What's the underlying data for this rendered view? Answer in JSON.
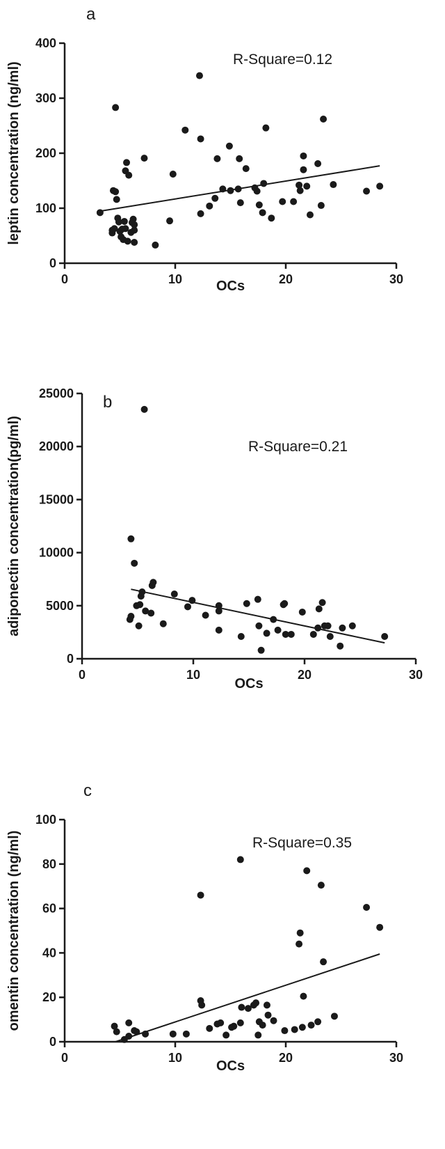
{
  "chart_data": [
    {
      "panel": "a",
      "type": "scatter",
      "annotation": "R-Square=0.12",
      "xlabel": "OCs",
      "ylabel": "leptin concentration (ng/ml)",
      "xlim": [
        0,
        30
      ],
      "ylim": [
        0,
        400
      ],
      "xticks": [
        0,
        10,
        20,
        30
      ],
      "yticks": [
        0,
        100,
        200,
        300,
        400
      ],
      "fit": [
        [
          3,
          94
        ],
        [
          28.5,
          177
        ]
      ],
      "points": [
        [
          3.2,
          92
        ],
        [
          4.3,
          60
        ],
        [
          4.3,
          55
        ],
        [
          4.4,
          132
        ],
        [
          4.5,
          63
        ],
        [
          4.6,
          130
        ],
        [
          4.6,
          283
        ],
        [
          4.7,
          116
        ],
        [
          4.8,
          82
        ],
        [
          4.9,
          75
        ],
        [
          5.0,
          58
        ],
        [
          5.1,
          48
        ],
        [
          5.2,
          62
        ],
        [
          5.3,
          43
        ],
        [
          5.4,
          76
        ],
        [
          5.5,
          63
        ],
        [
          5.5,
          168
        ],
        [
          5.6,
          183
        ],
        [
          5.7,
          40
        ],
        [
          5.8,
          160
        ],
        [
          6.0,
          56
        ],
        [
          6.1,
          74
        ],
        [
          6.2,
          80
        ],
        [
          6.3,
          38
        ],
        [
          6.3,
          70
        ],
        [
          6.3,
          60
        ],
        [
          7.2,
          191
        ],
        [
          8.2,
          33
        ],
        [
          9.5,
          77
        ],
        [
          9.8,
          162
        ],
        [
          10.9,
          242
        ],
        [
          12.2,
          341
        ],
        [
          12.3,
          226
        ],
        [
          12.3,
          90
        ],
        [
          13.1,
          104
        ],
        [
          13.6,
          118
        ],
        [
          13.8,
          190
        ],
        [
          14.3,
          135
        ],
        [
          14.9,
          213
        ],
        [
          15.0,
          132
        ],
        [
          15.7,
          135
        ],
        [
          15.8,
          190
        ],
        [
          15.9,
          110
        ],
        [
          16.4,
          172
        ],
        [
          17.2,
          137
        ],
        [
          17.4,
          131
        ],
        [
          17.6,
          106
        ],
        [
          17.9,
          92
        ],
        [
          18.0,
          145
        ],
        [
          18.2,
          246
        ],
        [
          18.7,
          82
        ],
        [
          19.7,
          112
        ],
        [
          20.7,
          112
        ],
        [
          21.2,
          142
        ],
        [
          21.3,
          132
        ],
        [
          21.6,
          195
        ],
        [
          21.6,
          170
        ],
        [
          21.9,
          140
        ],
        [
          22.2,
          88
        ],
        [
          22.9,
          181
        ],
        [
          23.2,
          105
        ],
        [
          23.4,
          262
        ],
        [
          24.3,
          143
        ],
        [
          27.3,
          131
        ],
        [
          28.5,
          140
        ]
      ]
    },
    {
      "panel": "b",
      "type": "scatter",
      "annotation": "R-Square=0.21",
      "xlabel": "OCs",
      "ylabel": "adiponectin concentration(pg/ml)",
      "xlim": [
        0,
        30
      ],
      "ylim": [
        0,
        25000
      ],
      "xticks": [
        0,
        10,
        20,
        30
      ],
      "yticks": [
        0,
        5000,
        10000,
        15000,
        20000,
        25000
      ],
      "fit": [
        [
          4.4,
          6550
        ],
        [
          27.2,
          1500
        ]
      ],
      "points": [
        [
          4.3,
          3700
        ],
        [
          4.4,
          4000
        ],
        [
          4.4,
          11300
        ],
        [
          4.7,
          9000
        ],
        [
          4.9,
          5000
        ],
        [
          5.1,
          3100
        ],
        [
          5.2,
          5100
        ],
        [
          5.3,
          5900
        ],
        [
          5.4,
          6300
        ],
        [
          5.6,
          23500
        ],
        [
          5.7,
          4500
        ],
        [
          6.2,
          4300
        ],
        [
          6.3,
          6900
        ],
        [
          6.4,
          7200
        ],
        [
          7.3,
          3300
        ],
        [
          8.3,
          6100
        ],
        [
          9.5,
          4900
        ],
        [
          9.9,
          5500
        ],
        [
          11.1,
          4100
        ],
        [
          12.3,
          5000
        ],
        [
          12.3,
          4500
        ],
        [
          12.3,
          2700
        ],
        [
          14.3,
          2100
        ],
        [
          14.8,
          5200
        ],
        [
          15.8,
          5600
        ],
        [
          15.9,
          3100
        ],
        [
          16.1,
          800
        ],
        [
          16.6,
          2400
        ],
        [
          17.2,
          3700
        ],
        [
          17.6,
          2700
        ],
        [
          18.1,
          5100
        ],
        [
          18.2,
          5200
        ],
        [
          18.3,
          2300
        ],
        [
          18.8,
          2300
        ],
        [
          19.8,
          4400
        ],
        [
          20.8,
          2300
        ],
        [
          21.2,
          2900
        ],
        [
          21.3,
          4700
        ],
        [
          21.6,
          5300
        ],
        [
          21.8,
          3100
        ],
        [
          22.1,
          3100
        ],
        [
          22.3,
          2100
        ],
        [
          23.2,
          1200
        ],
        [
          23.4,
          2900
        ],
        [
          24.3,
          3100
        ],
        [
          27.2,
          2100
        ]
      ]
    },
    {
      "panel": "c",
      "type": "scatter",
      "annotation": "R-Square=0.35",
      "xlabel": "OCs",
      "ylabel": "omentin concentration (ng/ml)",
      "xlim": [
        0,
        30
      ],
      "ylim": [
        0,
        100
      ],
      "xticks": [
        0,
        10,
        20,
        30
      ],
      "yticks": [
        0,
        20,
        40,
        60,
        80,
        100
      ],
      "fit": [
        [
          4.6,
          0
        ],
        [
          28.5,
          39.5
        ]
      ],
      "points": [
        [
          4.5,
          7
        ],
        [
          4.7,
          4.5
        ],
        [
          5.4,
          1
        ],
        [
          5.8,
          8.5
        ],
        [
          5.8,
          2.5
        ],
        [
          6.3,
          5
        ],
        [
          6.5,
          4.5
        ],
        [
          7.3,
          3.5
        ],
        [
          9.8,
          3.5
        ],
        [
          11.0,
          3.5
        ],
        [
          12.3,
          66
        ],
        [
          12.3,
          18.5
        ],
        [
          12.4,
          16.5
        ],
        [
          13.1,
          6
        ],
        [
          13.8,
          8
        ],
        [
          14.1,
          8.5
        ],
        [
          14.6,
          3
        ],
        [
          15.1,
          6.5
        ],
        [
          15.3,
          7
        ],
        [
          15.9,
          82
        ],
        [
          15.9,
          8.5
        ],
        [
          16.0,
          15.5
        ],
        [
          16.6,
          15
        ],
        [
          17.1,
          16.5
        ],
        [
          17.3,
          17.5
        ],
        [
          17.5,
          3
        ],
        [
          17.6,
          9
        ],
        [
          17.9,
          7.5
        ],
        [
          18.3,
          16.5
        ],
        [
          18.4,
          12
        ],
        [
          18.9,
          9.5
        ],
        [
          19.9,
          5
        ],
        [
          20.8,
          5.5
        ],
        [
          21.2,
          44
        ],
        [
          21.3,
          49
        ],
        [
          21.5,
          6.5
        ],
        [
          21.6,
          20.5
        ],
        [
          21.9,
          77
        ],
        [
          22.3,
          7.5
        ],
        [
          22.9,
          9
        ],
        [
          23.2,
          70.5
        ],
        [
          23.4,
          36
        ],
        [
          24.4,
          11.5
        ],
        [
          27.3,
          60.5
        ],
        [
          28.5,
          51.5
        ]
      ]
    }
  ]
}
